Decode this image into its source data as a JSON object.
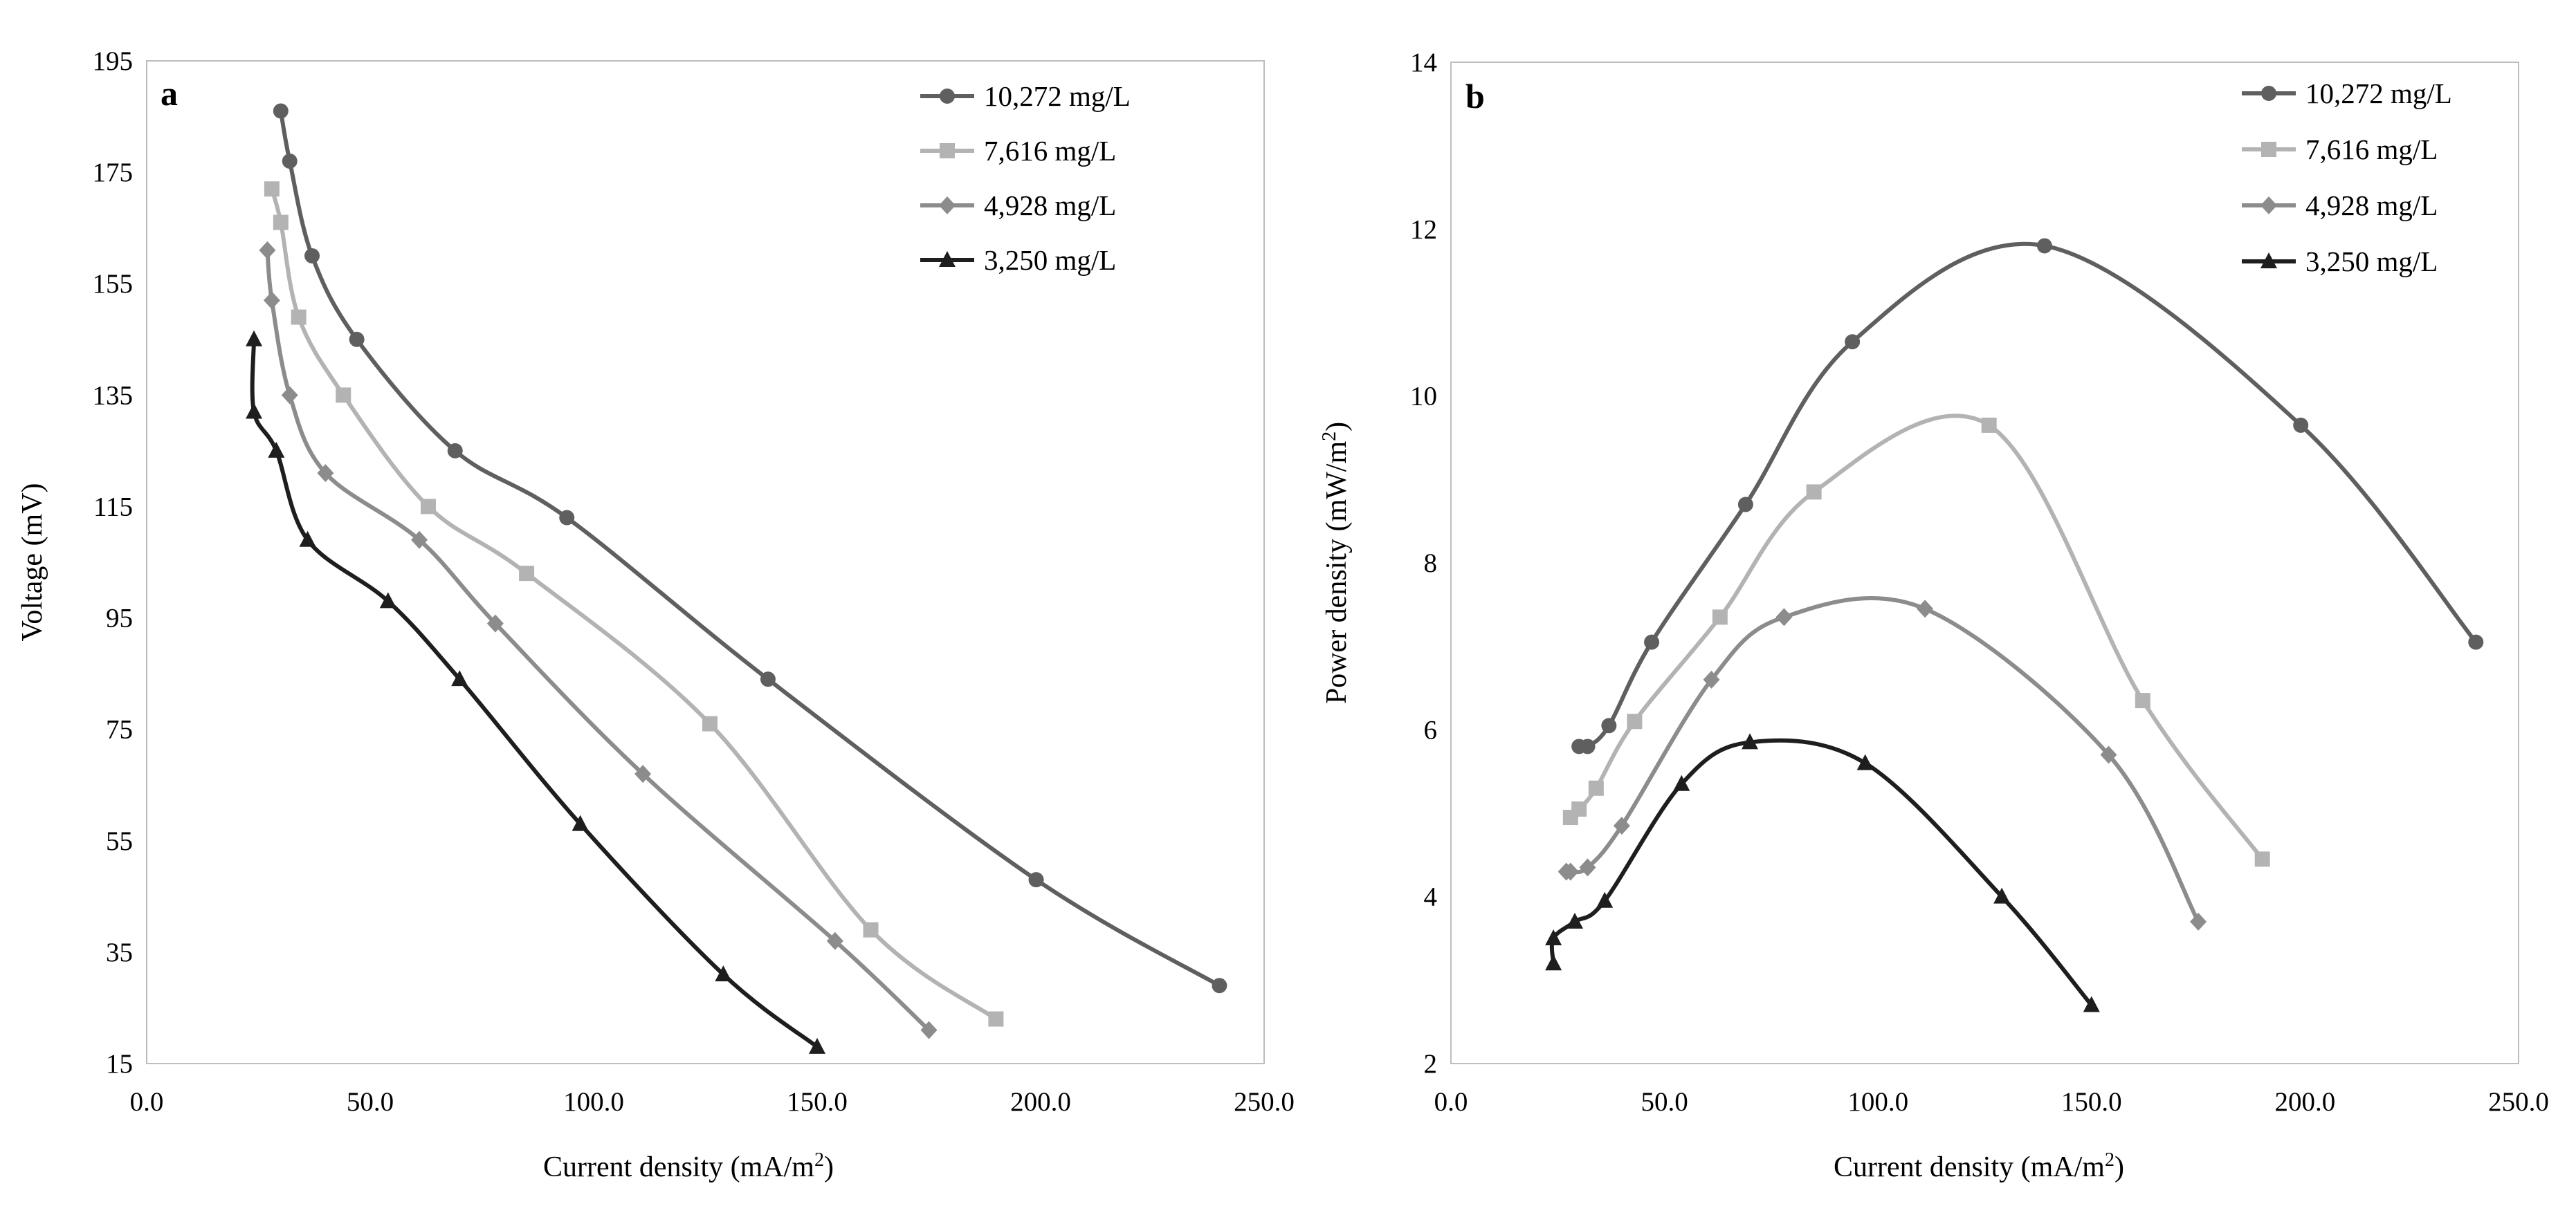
{
  "chart_data": [
    {
      "type": "line",
      "panel_label": "a",
      "title": "",
      "xlabel": "Current density",
      "xlabel_unit": "(mA/m",
      "xlabel_unit_sup": "2",
      "xlabel_unit_close": ")",
      "ylabel": "Voltage (mV)",
      "xlim": [
        0,
        250
      ],
      "ylim": [
        15,
        195
      ],
      "xticks": [
        "0.0",
        "50.0",
        "100.0",
        "150.0",
        "200.0",
        "250.0"
      ],
      "yticks": [
        "15",
        "35",
        "55",
        "75",
        "95",
        "115",
        "135",
        "155",
        "175",
        "195"
      ],
      "legend_position": "top-right",
      "series": [
        {
          "name": "10,272 mg/L",
          "marker": "circle",
          "color": "#5f5f5f",
          "x": [
            30,
            32,
            37,
            47,
            69,
            94,
            139,
            199,
            240
          ],
          "y": [
            186,
            177,
            160,
            145,
            125,
            113,
            84,
            48,
            29
          ]
        },
        {
          "name": "7,616 mg/L",
          "marker": "square",
          "color": "#b3b3b3",
          "x": [
            28,
            30,
            34,
            44,
            63,
            85,
            126,
            162,
            190
          ],
          "y": [
            172,
            166,
            149,
            135,
            115,
            103,
            76,
            39,
            23
          ]
        },
        {
          "name": "4,928 mg/L",
          "marker": "diamond",
          "color": "#8c8c8c",
          "x": [
            27,
            28,
            32,
            40,
            61,
            78,
            111,
            154,
            175
          ],
          "y": [
            161,
            152,
            135,
            121,
            109,
            94,
            67,
            37,
            21
          ]
        },
        {
          "name": "3,250 mg/L",
          "marker": "triangle",
          "color": "#1e1e1e",
          "x": [
            24,
            24,
            29,
            36,
            54,
            70,
            97,
            129,
            150
          ],
          "y": [
            145,
            132,
            125,
            109,
            98,
            84,
            58,
            31,
            18
          ]
        }
      ]
    },
    {
      "type": "line",
      "panel_label": "b",
      "title": "",
      "xlabel": "Current density",
      "xlabel_unit": "(mA/m",
      "xlabel_unit_sup": "2",
      "xlabel_unit_close": ")",
      "ylabel": "Power density",
      "ylabel_unit": "(mW/m",
      "ylabel_unit_sup": "2",
      "ylabel_unit_close": ")",
      "xlim": [
        0,
        250
      ],
      "ylim": [
        2,
        14
      ],
      "xticks": [
        "0.0",
        "50.0",
        "100.0",
        "150.0",
        "200.0",
        "250.0"
      ],
      "yticks": [
        "2",
        "4",
        "6",
        "8",
        "10",
        "12",
        "14"
      ],
      "legend_position": "top-right",
      "series": [
        {
          "name": "10,272 mg/L",
          "marker": "circle",
          "color": "#5f5f5f",
          "x": [
            30,
            32,
            37,
            47,
            69,
            94,
            139,
            199,
            240
          ],
          "y": [
            5.8,
            5.8,
            6.05,
            7.05,
            8.7,
            10.65,
            11.8,
            9.65,
            7.05
          ]
        },
        {
          "name": "7,616 mg/L",
          "marker": "square",
          "color": "#b3b3b3",
          "x": [
            28,
            30,
            34,
            43,
            63,
            85,
            126,
            162,
            190
          ],
          "y": [
            4.95,
            5.05,
            5.3,
            6.1,
            7.35,
            8.85,
            9.65,
            6.35,
            4.45
          ]
        },
        {
          "name": "4,928 mg/L",
          "marker": "diamond",
          "color": "#8c8c8c",
          "x": [
            27,
            28,
            32,
            40,
            61,
            78,
            111,
            154,
            175
          ],
          "y": [
            4.3,
            4.3,
            4.35,
            4.85,
            6.6,
            7.35,
            7.45,
            5.7,
            3.7
          ]
        },
        {
          "name": "3,250 mg/L",
          "marker": "triangle",
          "color": "#1e1e1e",
          "x": [
            24,
            24,
            29,
            36,
            54,
            70,
            97,
            129,
            150
          ],
          "y": [
            3.2,
            3.5,
            3.7,
            3.95,
            5.35,
            5.85,
            5.6,
            4.0,
            2.7
          ]
        }
      ]
    }
  ]
}
